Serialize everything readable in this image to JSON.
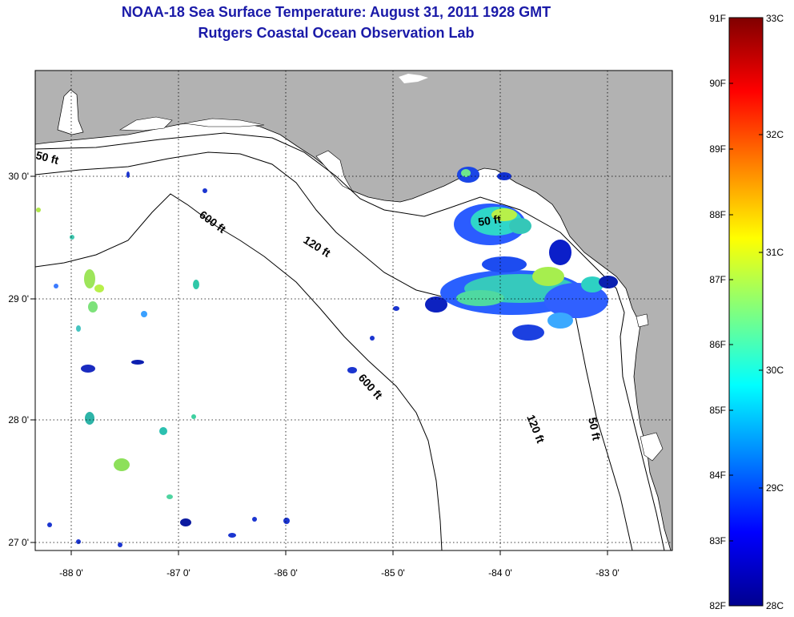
{
  "header": {
    "title": "NOAA-18 Sea Surface Temperature:  August 31, 2011 1928 GMT",
    "subtitle": "Rutgers Coastal Ocean Observation Lab"
  },
  "axes": {
    "lon_labels": [
      "-88 0'",
      "-87 0'",
      "-86 0'",
      "-85 0'",
      "-84 0'",
      "-83 0'"
    ],
    "lat_labels": [
      "30 0'",
      "29 0'",
      "28 0'",
      "27 0'"
    ]
  },
  "contours": {
    "ft50_a": "50 ft",
    "ft50_b": "50 ft",
    "ft50_c": "50 ft",
    "ft120_a": "120 ft",
    "ft120_b": "120 ft",
    "ft600_a": "600 ft",
    "ft600_b": "600 ft"
  },
  "colorbar": {
    "f_labels": [
      "91F",
      "90F",
      "89F",
      "88F",
      "87F",
      "86F",
      "85F",
      "84F",
      "83F",
      "82F"
    ],
    "c_labels": [
      "33C",
      "32C",
      "31C",
      "30C",
      "29C",
      "28C"
    ],
    "colors": [
      "#00008f",
      "#0000ff",
      "#00ffff",
      "#ffff00",
      "#ff0000",
      "#800000"
    ]
  },
  "colors": {
    "land": "#b2b2b2",
    "ocean": "#ffffff",
    "title": "#1a1aa8"
  }
}
